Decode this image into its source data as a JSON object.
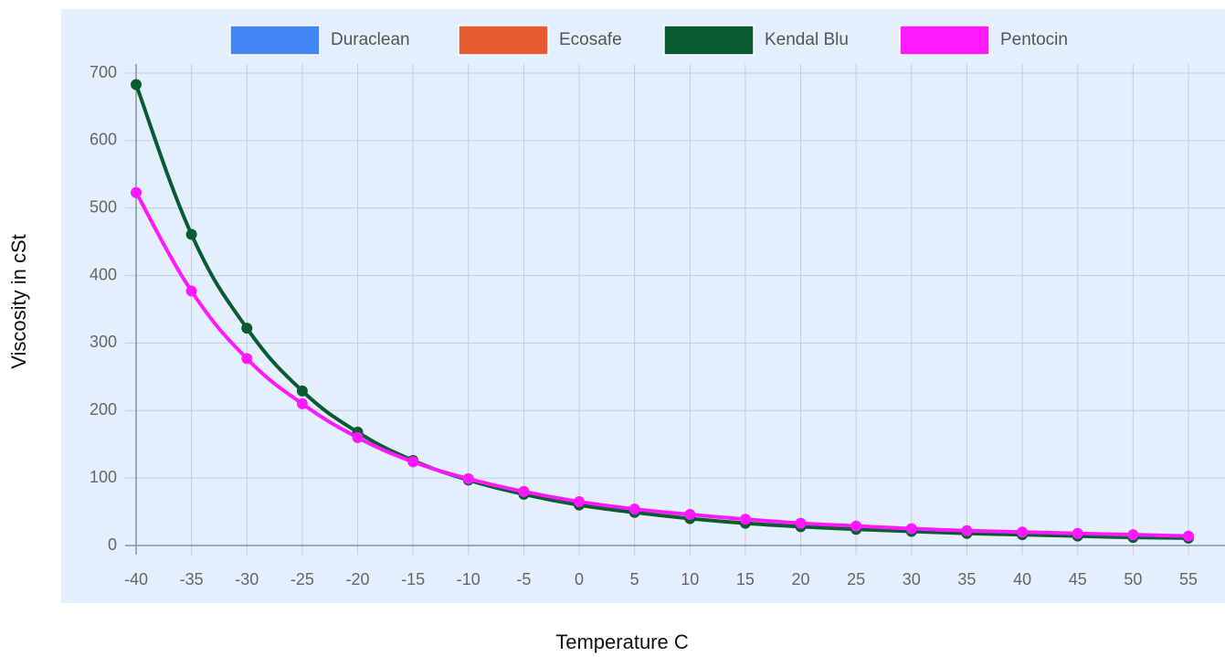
{
  "chart_data": {
    "type": "line",
    "x_label": "Temperature C",
    "y_label": "Viscosity in cSt",
    "categories": [
      -40,
      -35,
      -30,
      -25,
      -20,
      -15,
      -10,
      -5,
      0,
      5,
      10,
      15,
      20,
      25,
      30,
      35,
      40,
      45,
      50,
      55
    ],
    "series": [
      {
        "name": "Duraclean",
        "color": "#4285f4",
        "values": [
          null,
          null,
          null,
          null,
          null,
          null,
          null,
          null,
          null,
          null,
          null,
          null,
          null,
          null,
          null,
          null,
          null,
          null,
          null,
          null
        ]
      },
      {
        "name": "Ecosafe",
        "color": "#e65c32",
        "values": [
          null,
          null,
          null,
          null,
          null,
          null,
          null,
          null,
          null,
          null,
          null,
          null,
          null,
          null,
          null,
          null,
          null,
          null,
          null,
          null
        ]
      },
      {
        "name": "Kendal Blu",
        "color": "#0a5a32",
        "values": [
          683,
          461,
          322,
          229,
          168,
          126,
          97,
          76,
          60,
          49,
          40,
          33,
          28,
          24,
          21,
          18,
          16,
          14,
          12,
          11
        ]
      },
      {
        "name": "Pentocin",
        "color": "#ff19ff",
        "values": [
          523,
          377,
          277,
          210,
          160,
          124,
          99,
          80,
          65,
          54,
          46,
          39,
          33,
          29,
          25,
          22,
          20,
          18,
          16,
          14
        ]
      }
    ],
    "ylim": [
      0,
      700
    ],
    "yticks": [
      0,
      100,
      200,
      300,
      400,
      500,
      600,
      700
    ],
    "grid": true,
    "legend": "top"
  }
}
